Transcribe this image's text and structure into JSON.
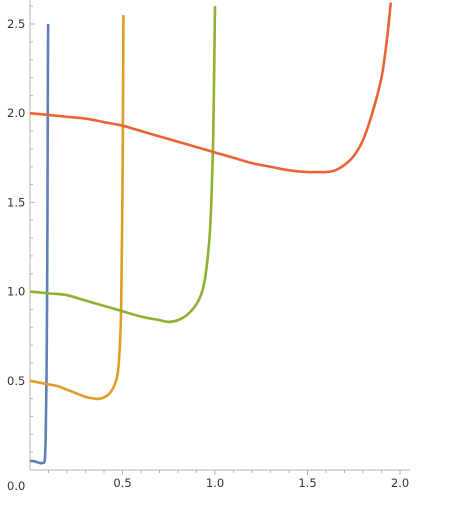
{
  "chart_data": {
    "type": "line",
    "title": "",
    "xlabel": "",
    "ylabel": "",
    "xlim": [
      0.0,
      2.0
    ],
    "ylim": [
      0.0,
      2.6
    ],
    "x_ticks": {
      "major": [
        0.5,
        1.0,
        1.5,
        2.0
      ],
      "major_labels": [
        "0.5",
        "1.0",
        "1.5",
        "2.0"
      ],
      "minor_step": 0.1
    },
    "y_ticks": {
      "major": [
        0.0,
        0.5,
        1.0,
        1.5,
        2.0,
        2.5
      ],
      "major_labels": [
        "0.0",
        "0.5",
        "1.0",
        "1.5",
        "2.0",
        "2.5"
      ],
      "minor_step": 0.1
    },
    "grid": false,
    "legend": "none",
    "series": [
      {
        "color": "#5e81b5",
        "x": [
          0.0,
          0.02,
          0.05,
          0.07,
          0.08,
          0.085,
          0.09,
          0.093,
          0.095,
          0.096,
          0.097,
          0.098
        ],
        "y": [
          0.05,
          0.05,
          0.04,
          0.04,
          0.06,
          0.2,
          0.6,
          1.1,
          1.6,
          2.0,
          2.3,
          2.5
        ]
      },
      {
        "color": "#e19c24",
        "x": [
          0.0,
          0.05,
          0.1,
          0.15,
          0.2,
          0.25,
          0.3,
          0.35,
          0.38,
          0.42,
          0.45,
          0.47,
          0.48,
          0.49,
          0.495,
          0.5,
          0.503,
          0.505
        ],
        "y": [
          0.5,
          0.49,
          0.48,
          0.47,
          0.45,
          0.43,
          0.41,
          0.4,
          0.4,
          0.42,
          0.46,
          0.52,
          0.6,
          0.8,
          1.1,
          1.6,
          2.1,
          2.55
        ]
      },
      {
        "color": "#8fb032",
        "x": [
          0.0,
          0.1,
          0.2,
          0.3,
          0.4,
          0.5,
          0.6,
          0.7,
          0.75,
          0.8,
          0.85,
          0.9,
          0.93,
          0.95,
          0.97,
          0.98,
          0.99,
          0.995,
          1.0
        ],
        "y": [
          1.0,
          0.99,
          0.98,
          0.95,
          0.92,
          0.89,
          0.86,
          0.84,
          0.83,
          0.84,
          0.87,
          0.93,
          1.0,
          1.1,
          1.3,
          1.5,
          1.85,
          2.2,
          2.6
        ]
      },
      {
        "color": "#eb6235",
        "x": [
          0.0,
          0.1,
          0.2,
          0.3,
          0.4,
          0.5,
          0.6,
          0.7,
          0.8,
          0.9,
          1.0,
          1.1,
          1.2,
          1.3,
          1.4,
          1.5,
          1.55,
          1.6,
          1.65,
          1.7,
          1.75,
          1.8,
          1.85,
          1.9,
          1.93,
          1.95
        ],
        "y": [
          2.0,
          1.99,
          1.98,
          1.97,
          1.95,
          1.93,
          1.9,
          1.87,
          1.84,
          1.81,
          1.78,
          1.75,
          1.72,
          1.7,
          1.68,
          1.67,
          1.67,
          1.67,
          1.68,
          1.71,
          1.76,
          1.85,
          2.0,
          2.2,
          2.42,
          2.62
        ]
      }
    ]
  }
}
